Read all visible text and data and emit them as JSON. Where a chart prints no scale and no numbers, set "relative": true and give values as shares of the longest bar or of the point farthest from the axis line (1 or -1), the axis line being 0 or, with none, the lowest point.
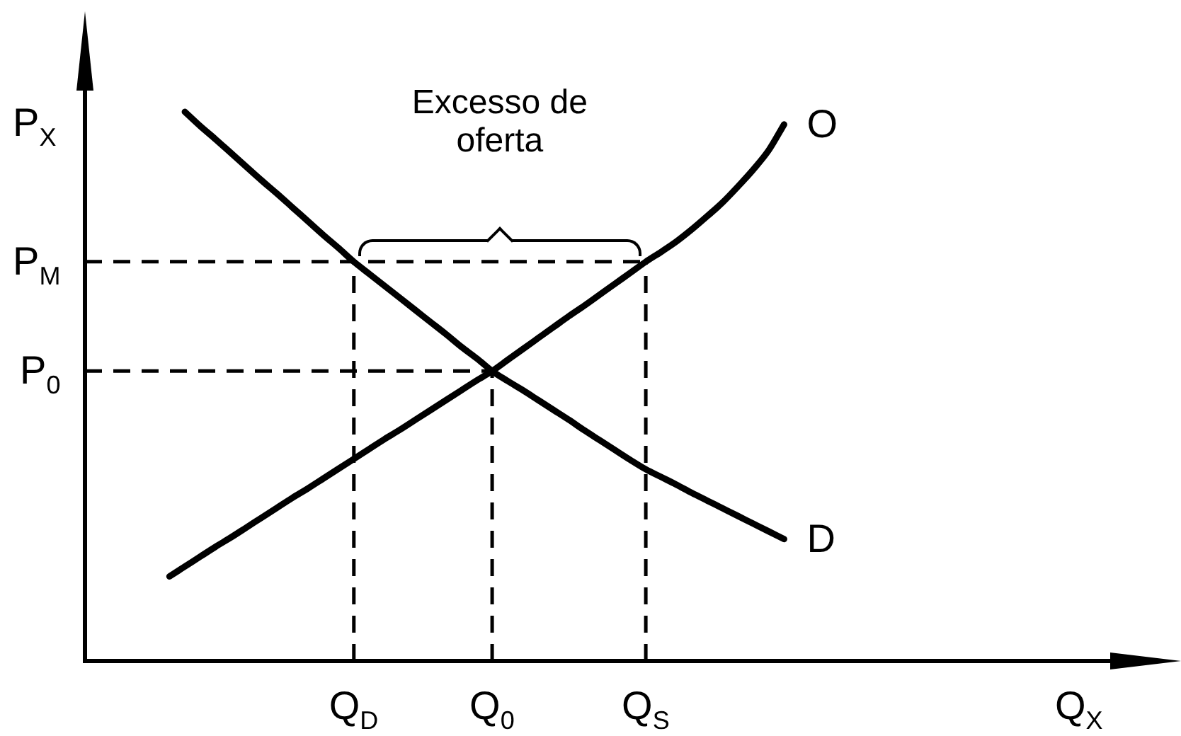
{
  "chart_data": {
    "type": "line",
    "relative": true,
    "xlabel": "Q$_{X}$",
    "ylabel": "P$_{X}$",
    "categories": [
      null,
      null,
      null,
      null,
      null,
      null,
      null,
      null,
      null,
      null,
      null,
      null,
      null,
      null,
      null,
      null,
      null,
      "Q$_{D}$",
      null,
      null,
      null,
      null,
      null,
      null,
      null,
      null,
      "Q$_{0}$",
      null,
      null,
      null,
      null,
      null,
      null,
      null,
      null,
      null,
      "Q$_{S}$",
      null,
      null,
      null,
      null,
      null,
      null,
      null,
      null,
      null,
      null,
      null,
      null,
      null,
      null,
      null,
      null,
      null,
      null,
      null,
      null,
      null,
      null,
      null,
      null,
      null,
      null,
      null,
      null,
      null,
      null
    ],
    "series": [
      {
        "name": "D",
        "color": "#000000",
        "values": [
          null,
          null,
          null,
          null,
          null,
          null,
          1,
          0.974,
          0.95,
          0.925,
          0.9,
          0.875,
          0.851,
          0.826,
          0.801,
          0.776,
          0.752,
          0.727,
          0.705,
          0.683,
          0.661,
          0.639,
          0.617,
          0.595,
          0.572,
          0.551,
          0.528,
          0.51,
          0.493,
          0.475,
          0.457,
          0.439,
          0.42,
          0.402,
          0.384,
          0.366,
          0.349,
          0.335,
          0.321,
          0.306,
          0.292,
          0.278,
          0.264,
          0.25,
          0.236,
          0.222,
          null,
          null,
          null,
          null,
          null,
          null,
          null,
          null,
          null,
          null,
          null,
          null,
          null,
          null,
          null,
          null,
          null,
          null,
          null,
          null,
          null
        ]
      },
      {
        "name": "O",
        "color": "#000000",
        "values": [
          null,
          null,
          null,
          null,
          null,
          0.154,
          0.172,
          0.19,
          0.208,
          0.225,
          0.243,
          0.261,
          0.279,
          0.297,
          0.314,
          0.332,
          0.35,
          0.368,
          0.386,
          0.404,
          0.421,
          0.439,
          0.457,
          0.475,
          0.493,
          0.511,
          0.528,
          0.548,
          0.568,
          0.588,
          0.608,
          0.628,
          0.647,
          0.667,
          0.687,
          0.707,
          0.727,
          0.745,
          0.764,
          0.786,
          0.81,
          0.835,
          0.864,
          0.895,
          0.93,
          0.977,
          null,
          null,
          null,
          null,
          null,
          null,
          null,
          null,
          null,
          null,
          null,
          null,
          null,
          null,
          null,
          null,
          null,
          null,
          null,
          null,
          null
        ]
      }
    ],
    "ref_lines": [
      {
        "axis": "y",
        "value": 0.727,
        "label": "P$_{M}$",
        "line_style": "dashed"
      },
      {
        "axis": "y",
        "value": 0.528,
        "label": "P$_{0}$",
        "line_style": "dashed"
      },
      {
        "axis": "x",
        "value": "Q$_{D}$",
        "line_style": "dashed"
      },
      {
        "axis": "x",
        "value": "Q$_{0}$",
        "line_style": "dashed"
      },
      {
        "axis": "x",
        "value": "Q$_{S}$",
        "line_style": "dashed"
      }
    ],
    "annotations": [
      "Excesso de oferta"
    ]
  }
}
